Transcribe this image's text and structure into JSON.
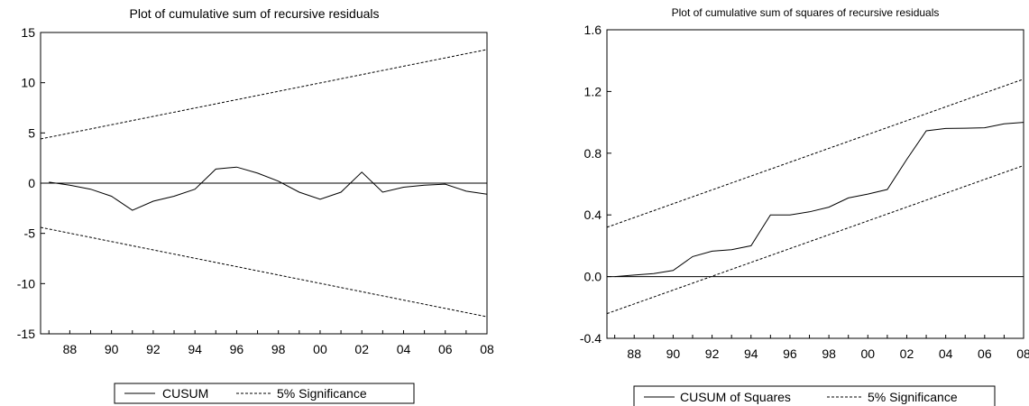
{
  "chart_data": [
    {
      "type": "line",
      "title": "Plot of cumulative sum of recursive residuals",
      "xlabel": "",
      "ylabel": "",
      "x_tick_labels": [
        "88",
        "90",
        "92",
        "94",
        "96",
        "98",
        "00",
        "02",
        "04",
        "06",
        "08"
      ],
      "y_ticks": [
        -15,
        -10,
        -5,
        0,
        5,
        10,
        15
      ],
      "xlim": [
        1986.6,
        2008
      ],
      "ylim": [
        -15,
        15
      ],
      "zero_line": true,
      "legend": "bottom-center",
      "series": [
        {
          "name": "CUSUM",
          "style": "solid",
          "x": [
            1987,
            1988,
            1989,
            1990,
            1991,
            1992,
            1993,
            1994,
            1995,
            1996,
            1997,
            1998,
            1999,
            2000,
            2001,
            2002,
            2003,
            2004,
            2005,
            2006,
            2007,
            2008
          ],
          "y": [
            0.1,
            -0.2,
            -0.6,
            -1.3,
            -2.7,
            -1.8,
            -1.3,
            -0.6,
            1.4,
            1.6,
            1.0,
            0.2,
            -0.9,
            -1.6,
            -0.9,
            1.1,
            -0.9,
            -0.4,
            -0.2,
            -0.1,
            -0.8,
            -1.1
          ]
        },
        {
          "name": "5% Significance",
          "style": "dashed",
          "x": [
            1986.6,
            2008
          ],
          "y": [
            4.4,
            13.3
          ]
        },
        {
          "name": "",
          "style": "dashed",
          "x": [
            1986.6,
            2008
          ],
          "y": [
            -4.4,
            -13.3
          ]
        }
      ]
    },
    {
      "type": "line",
      "title": "Plot of cumulative  sum of squares of recursive residuals",
      "xlabel": "",
      "ylabel": "",
      "x_tick_labels": [
        "88",
        "90",
        "92",
        "94",
        "96",
        "98",
        "00",
        "02",
        "04",
        "06",
        "08"
      ],
      "y_ticks": [
        -0.4,
        0.0,
        0.4,
        0.8,
        1.2,
        1.6
      ],
      "y_tick_labels": [
        "-0.4",
        "0.0",
        "0.4",
        "0.8",
        "1.2",
        "1.6"
      ],
      "xlim": [
        1986.6,
        2008
      ],
      "ylim": [
        -0.4,
        1.6
      ],
      "zero_line": true,
      "legend": "bottom-center",
      "series": [
        {
          "name": "CUSUM of Squares",
          "style": "solid",
          "x": [
            1987,
            1988,
            1989,
            1990,
            1991,
            1992,
            1993,
            1994,
            1995,
            1996,
            1997,
            1998,
            1999,
            2000,
            2001,
            2002,
            2003,
            2004,
            2005,
            2006,
            2007,
            2008
          ],
          "y": [
            0.0,
            0.01,
            0.02,
            0.04,
            0.13,
            0.165,
            0.175,
            0.2,
            0.4,
            0.4,
            0.42,
            0.45,
            0.51,
            0.535,
            0.565,
            0.76,
            0.945,
            0.96,
            0.962,
            0.965,
            0.99,
            1.0
          ]
        },
        {
          "name": "5% Significance",
          "style": "dashed",
          "x": [
            1986.6,
            2008
          ],
          "y": [
            0.32,
            1.28
          ]
        },
        {
          "name": "",
          "style": "dashed",
          "x": [
            1986.6,
            2008
          ],
          "y": [
            -0.24,
            0.72
          ]
        }
      ]
    }
  ]
}
